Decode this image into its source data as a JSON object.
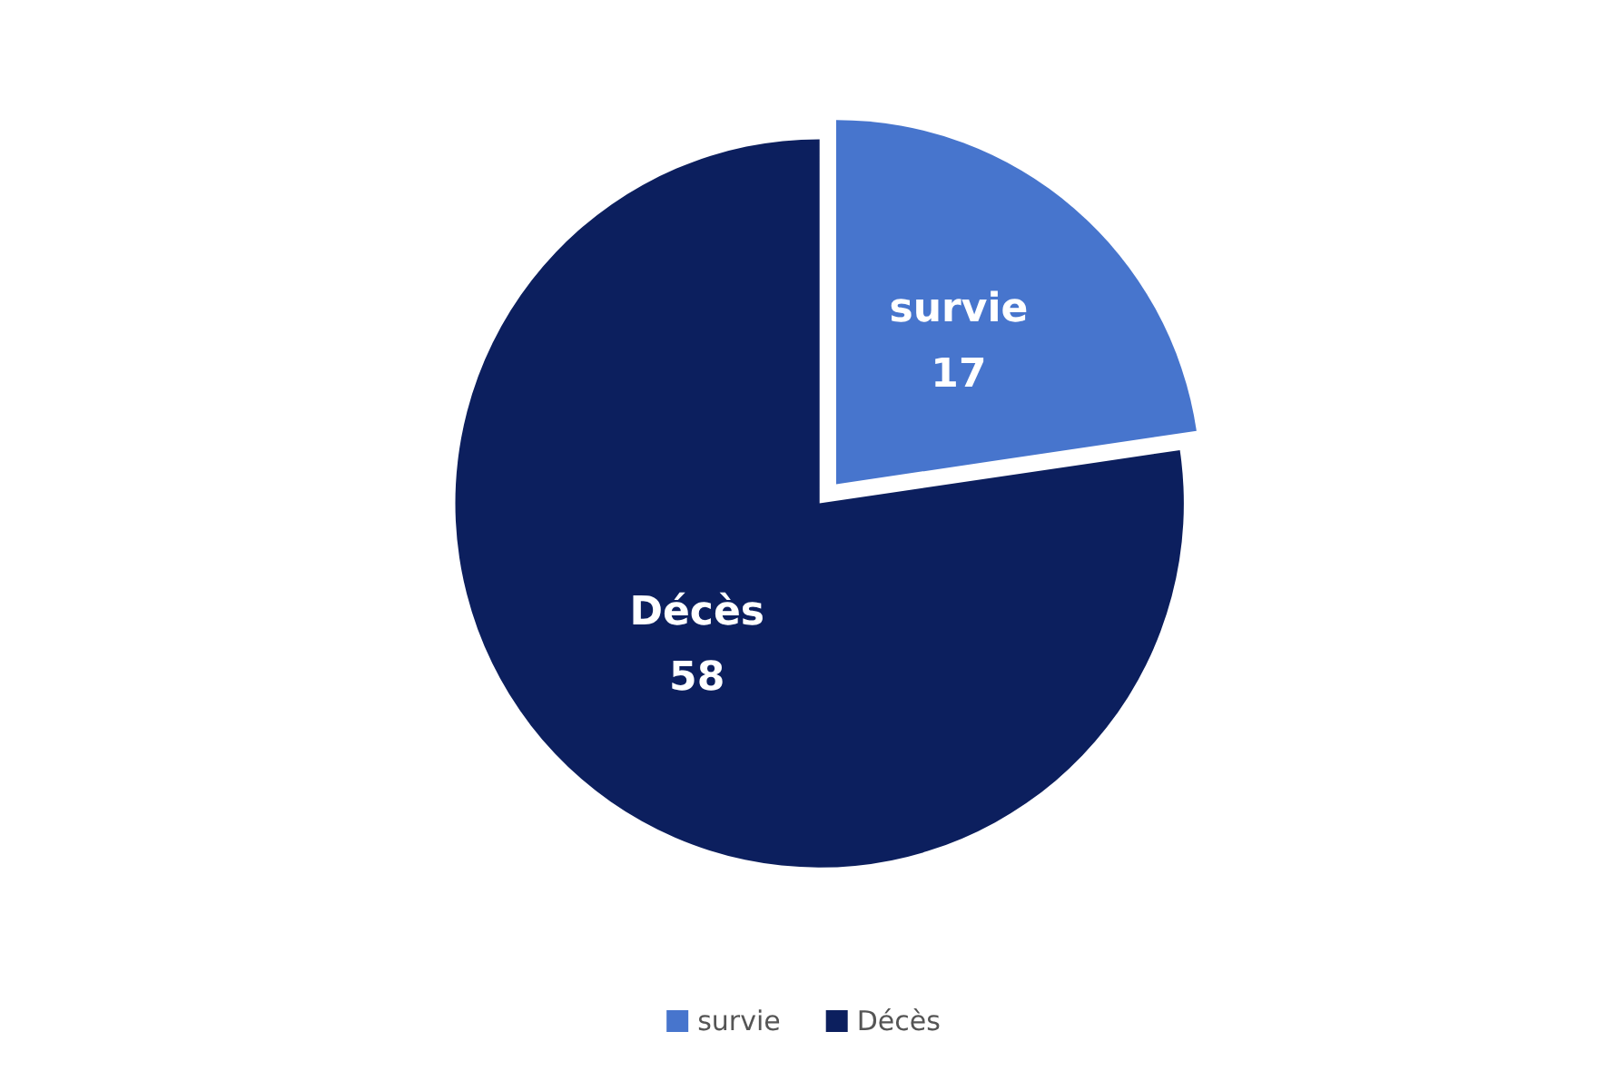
{
  "chart_data": {
    "type": "pie",
    "categories": [
      "survie",
      "Décès"
    ],
    "values": [
      17,
      58
    ],
    "colors": [
      "#4775cd",
      "#0c1f5e"
    ],
    "data_labels": true,
    "legend": "bottom"
  }
}
